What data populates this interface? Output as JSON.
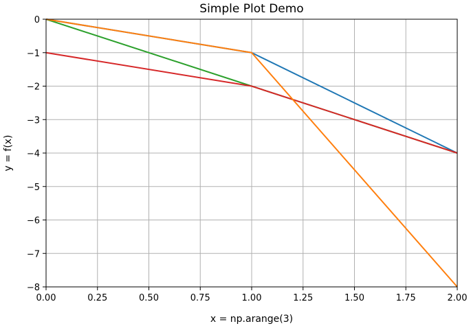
{
  "chart_data": {
    "type": "line",
    "title": "Simple Plot Demo",
    "xlabel": "x = np.arange(3)",
    "ylabel": "y = f(x)",
    "xlim": [
      0,
      2
    ],
    "ylim": [
      -8,
      0
    ],
    "grid": true,
    "x_ticks": [
      "0.00",
      "0.25",
      "0.50",
      "0.75",
      "1.00",
      "1.25",
      "1.50",
      "1.75",
      "2.00"
    ],
    "y_ticks": [
      "0",
      "−1",
      "−2",
      "−3",
      "−4",
      "−5",
      "−6",
      "−7",
      "−8"
    ],
    "x": [
      0,
      1,
      2
    ],
    "series": [
      {
        "color": "#1f77b4",
        "values": [
          0,
          -1,
          -4
        ]
      },
      {
        "color": "#2ca02c",
        "values": [
          0,
          -2,
          -4
        ]
      },
      {
        "color": "#d62728",
        "values": [
          -1,
          -2,
          -4
        ]
      },
      {
        "color": "#ff7f0e",
        "values": [
          0,
          -1,
          -8
        ]
      }
    ]
  }
}
